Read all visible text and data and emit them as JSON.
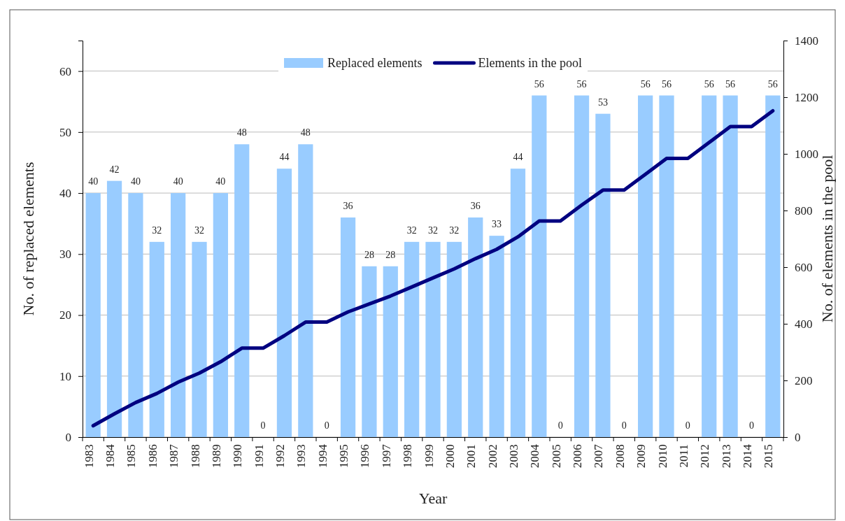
{
  "chart_data": {
    "type": "bar",
    "xlabel": "Year",
    "ylabel": "No. of replaced  elements",
    "y2label": "No. of elements in the pool",
    "categories": [
      "1983",
      "1984",
      "1985",
      "1986",
      "1987",
      "1988",
      "1989",
      "1990",
      "1991",
      "1992",
      "1993",
      "1994",
      "1995",
      "1996",
      "1997",
      "1998",
      "1999",
      "2000",
      "2001",
      "2002",
      "2003",
      "2004",
      "2005",
      "2006",
      "2007",
      "2008",
      "2009",
      "2010",
      "2011",
      "2012",
      "2013",
      "2014",
      "2015"
    ],
    "series": [
      {
        "name": "Replaced elements",
        "color": "#99ccff",
        "data_labels": true,
        "values": [
          40,
          42,
          40,
          32,
          40,
          32,
          40,
          48,
          0,
          44,
          48,
          0,
          36,
          28,
          28,
          32,
          32,
          32,
          36,
          33,
          44,
          56,
          0,
          56,
          53,
          0,
          56,
          56,
          0,
          56,
          56,
          0,
          56
        ]
      },
      {
        "name": "Elements in the pool",
        "type": "line",
        "axis": "y2",
        "color": "#000080",
        "values": [
          40,
          82,
          122,
          154,
          194,
          226,
          266,
          314,
          314,
          358,
          406,
          406,
          442,
          470,
          498,
          530,
          562,
          594,
          630,
          663,
          707,
          763,
          763,
          819,
          872,
          872,
          928,
          984,
          984,
          1040,
          1096,
          1096,
          1152
        ]
      }
    ],
    "ylim": [
      0,
      65
    ],
    "yticks": [
      0,
      10,
      20,
      30,
      40,
      50,
      60
    ],
    "y2lim": [
      0,
      1400
    ],
    "y2ticks": [
      0,
      200,
      400,
      600,
      800,
      1000,
      1200,
      1400
    ],
    "grid": "y",
    "legend": "top",
    "marker": "none",
    "line_style": "solid"
  }
}
